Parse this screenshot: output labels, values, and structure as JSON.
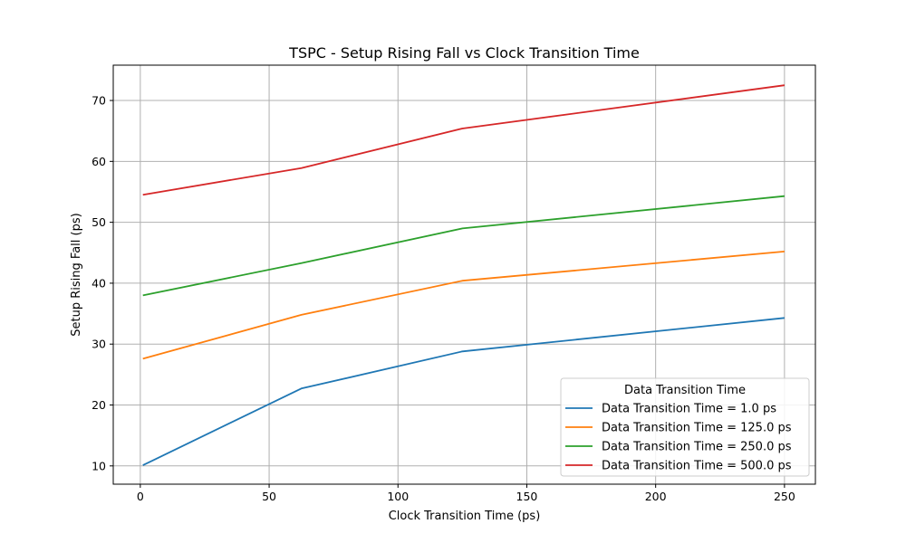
{
  "chart_data": {
    "type": "line",
    "title": "TSPC - Setup Rising Fall vs Clock Transition Time",
    "xlabel": "Clock Transition Time (ps)",
    "ylabel": "Setup Rising Fall (ps)",
    "xlim": [
      -10.5,
      262
    ],
    "ylim": [
      7.0,
      75.8
    ],
    "xticks": [
      0,
      50,
      100,
      150,
      200,
      250
    ],
    "yticks": [
      10,
      20,
      30,
      40,
      50,
      60,
      70
    ],
    "grid": true,
    "legend": {
      "title": "Data Transition Time",
      "placement": "lower-right"
    },
    "x": [
      1,
      62.5,
      125,
      250
    ],
    "series": [
      {
        "name": "Data Transition Time = 1.0 ps",
        "color": "#1f77b4",
        "values": [
          10.1,
          22.7,
          28.8,
          34.3
        ]
      },
      {
        "name": "Data Transition Time = 125.0 ps",
        "color": "#ff7f0e",
        "values": [
          27.6,
          34.8,
          40.4,
          45.2
        ]
      },
      {
        "name": "Data Transition Time = 250.0 ps",
        "color": "#2ca02c",
        "values": [
          38.0,
          43.3,
          49.0,
          54.3
        ]
      },
      {
        "name": "Data Transition Time = 500.0 ps",
        "color": "#d62728",
        "values": [
          54.5,
          58.9,
          65.4,
          72.5
        ]
      }
    ]
  }
}
